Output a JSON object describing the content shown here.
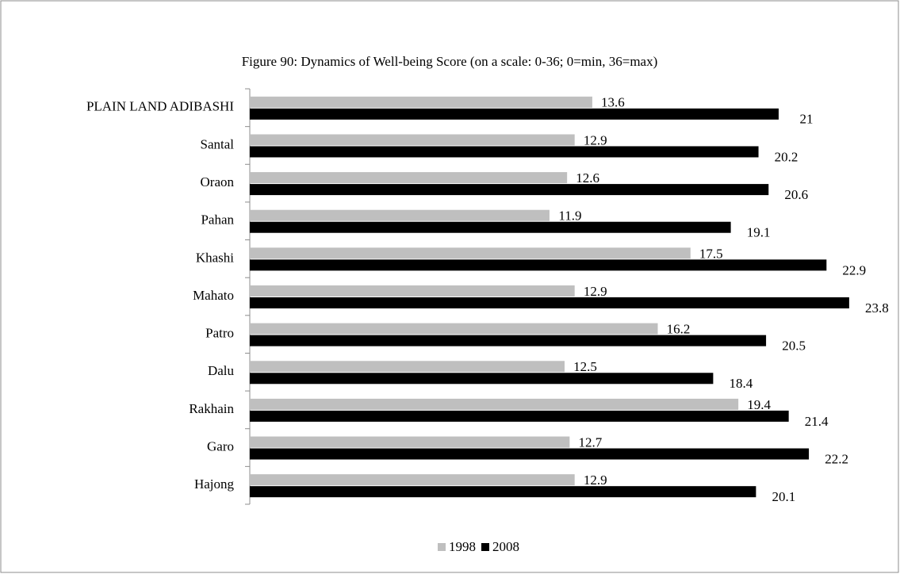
{
  "chart_data": {
    "type": "bar",
    "orientation": "horizontal",
    "title": "Figure 90: Dynamics of Well-being  Score (on a scale: 0-36; 0=min, 36=max)",
    "categories": [
      "PLAIN LAND ADIBASHI",
      "Santal",
      "Oraon",
      "Pahan",
      "Khashi",
      "Mahato",
      "Patro",
      "Dalu",
      "Rakhain",
      "Garo",
      "Hajong"
    ],
    "series": [
      {
        "name": "1998",
        "color": "#bfbfbf",
        "values": [
          13.6,
          12.9,
          12.6,
          11.9,
          17.5,
          12.9,
          16.2,
          12.5,
          19.4,
          12.7,
          12.9
        ]
      },
      {
        "name": "2008",
        "color": "#000000",
        "values": [
          21,
          20.2,
          20.6,
          19.1,
          22.9,
          23.8,
          20.5,
          18.4,
          21.4,
          22.2,
          20.1
        ]
      }
    ],
    "xlim": [
      0,
      25
    ],
    "legend": "bottom"
  }
}
